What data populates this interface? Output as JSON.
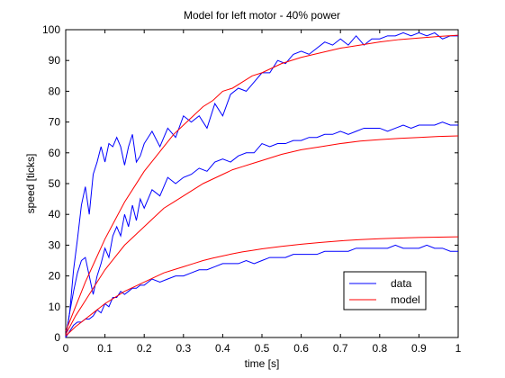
{
  "chart_data": {
    "type": "line",
    "title": "Model for left motor - 40% power",
    "xlabel": "time [s]",
    "ylabel": "speed [ticks]",
    "xlim": [
      0,
      1
    ],
    "ylim": [
      0,
      100
    ],
    "xticks": [
      "0",
      "0.1",
      "0.2",
      "0.3",
      "0.4",
      "0.5",
      "0.6",
      "0.7",
      "0.8",
      "0.9",
      "1"
    ],
    "yticks": [
      "0",
      "10",
      "20",
      "30",
      "40",
      "50",
      "60",
      "70",
      "80",
      "90",
      "100"
    ],
    "grid": false,
    "legend": {
      "placement": "bottom-right",
      "entries": [
        "data",
        "model"
      ]
    },
    "colors": {
      "data": "#0000ff",
      "model": "#ff0000"
    },
    "series": [
      {
        "name": "data",
        "group": "high",
        "x": [
          0,
          0.01,
          0.02,
          0.03,
          0.04,
          0.05,
          0.06,
          0.07,
          0.08,
          0.09,
          0.1,
          0.11,
          0.12,
          0.13,
          0.14,
          0.15,
          0.16,
          0.17,
          0.18,
          0.19,
          0.2,
          0.22,
          0.24,
          0.26,
          0.28,
          0.3,
          0.32,
          0.34,
          0.36,
          0.38,
          0.4,
          0.42,
          0.44,
          0.46,
          0.48,
          0.5,
          0.52,
          0.54,
          0.56,
          0.58,
          0.6,
          0.62,
          0.64,
          0.66,
          0.68,
          0.7,
          0.72,
          0.74,
          0.76,
          0.78,
          0.8,
          0.82,
          0.84,
          0.86,
          0.88,
          0.9,
          0.92,
          0.94,
          0.96,
          0.98,
          1.0
        ],
        "y": [
          0,
          8,
          22,
          32,
          43,
          49,
          40,
          53,
          57,
          62,
          57,
          63,
          62,
          65,
          62,
          56,
          62,
          66,
          57,
          59,
          63,
          67,
          62,
          68,
          65,
          72,
          70,
          72,
          68,
          76,
          72,
          79,
          81,
          80,
          83,
          86,
          86,
          90,
          89,
          92,
          93,
          92,
          94,
          96,
          95,
          97,
          95,
          98,
          95,
          97,
          97,
          98,
          98,
          99,
          98,
          99,
          98,
          99,
          97,
          98,
          98
        ]
      },
      {
        "name": "data",
        "group": "mid",
        "x": [
          0,
          0.01,
          0.02,
          0.03,
          0.04,
          0.05,
          0.06,
          0.07,
          0.08,
          0.09,
          0.1,
          0.11,
          0.12,
          0.13,
          0.14,
          0.15,
          0.16,
          0.17,
          0.18,
          0.19,
          0.2,
          0.22,
          0.24,
          0.26,
          0.28,
          0.3,
          0.32,
          0.34,
          0.36,
          0.38,
          0.4,
          0.42,
          0.44,
          0.46,
          0.48,
          0.5,
          0.52,
          0.54,
          0.56,
          0.58,
          0.6,
          0.62,
          0.64,
          0.66,
          0.68,
          0.7,
          0.72,
          0.74,
          0.76,
          0.78,
          0.8,
          0.82,
          0.84,
          0.86,
          0.88,
          0.9,
          0.92,
          0.94,
          0.96,
          0.98,
          1.0
        ],
        "y": [
          0,
          8,
          15,
          21,
          25,
          26,
          20,
          14,
          20,
          24,
          29,
          26,
          33,
          36,
          33,
          40,
          36,
          43,
          38,
          45,
          42,
          48,
          46,
          52,
          50,
          52,
          53,
          55,
          54,
          57,
          58,
          57,
          59,
          60,
          60,
          63,
          62,
          63,
          63,
          64,
          64,
          65,
          65,
          66,
          66,
          67,
          66,
          67,
          68,
          68,
          68,
          67,
          68,
          69,
          68,
          69,
          69,
          69,
          70,
          69,
          69
        ]
      },
      {
        "name": "data",
        "group": "low",
        "x": [
          0,
          0.01,
          0.02,
          0.03,
          0.04,
          0.05,
          0.06,
          0.07,
          0.08,
          0.09,
          0.1,
          0.11,
          0.12,
          0.13,
          0.14,
          0.15,
          0.16,
          0.17,
          0.18,
          0.19,
          0.2,
          0.22,
          0.24,
          0.26,
          0.28,
          0.3,
          0.32,
          0.34,
          0.36,
          0.38,
          0.4,
          0.42,
          0.44,
          0.46,
          0.48,
          0.5,
          0.52,
          0.54,
          0.56,
          0.58,
          0.6,
          0.62,
          0.64,
          0.66,
          0.68,
          0.7,
          0.72,
          0.74,
          0.76,
          0.78,
          0.8,
          0.82,
          0.84,
          0.86,
          0.88,
          0.9,
          0.92,
          0.94,
          0.96,
          0.98,
          1.0
        ],
        "y": [
          0,
          2,
          4,
          5,
          5,
          6,
          6,
          7,
          9,
          8,
          11,
          10,
          13,
          13,
          15,
          14,
          15,
          16,
          16,
          17,
          17,
          19,
          18,
          19,
          20,
          20,
          21,
          22,
          22,
          23,
          24,
          24,
          24,
          25,
          24,
          25,
          26,
          26,
          26,
          27,
          27,
          27,
          27,
          28,
          28,
          28,
          28,
          29,
          29,
          29,
          29,
          29,
          30,
          29,
          29,
          29,
          30,
          29,
          29,
          28,
          28
        ]
      },
      {
        "name": "model",
        "group": "high",
        "x": [
          0,
          0.025,
          0.05,
          0.075,
          0.1,
          0.125,
          0.15,
          0.175,
          0.2,
          0.225,
          0.25,
          0.275,
          0.3,
          0.325,
          0.35,
          0.375,
          0.4,
          0.425,
          0.45,
          0.475,
          0.5,
          0.55,
          0.6,
          0.65,
          0.7,
          0.75,
          0.8,
          0.85,
          0.9,
          0.95,
          1.0
        ],
        "y": [
          2,
          10,
          18,
          25,
          32,
          38,
          44,
          49,
          54,
          58,
          62,
          66,
          69,
          72,
          75,
          77,
          80,
          81,
          83,
          85,
          86,
          89,
          91,
          92.5,
          94,
          95,
          96,
          96.8,
          97.3,
          97.8,
          98.2
        ]
      },
      {
        "name": "model",
        "group": "mid",
        "x": [
          0,
          0.025,
          0.05,
          0.075,
          0.1,
          0.125,
          0.15,
          0.175,
          0.2,
          0.225,
          0.25,
          0.275,
          0.3,
          0.325,
          0.35,
          0.375,
          0.4,
          0.425,
          0.45,
          0.475,
          0.5,
          0.55,
          0.6,
          0.65,
          0.7,
          0.75,
          0.8,
          0.85,
          0.9,
          0.95,
          1.0
        ],
        "y": [
          1,
          7,
          12,
          17,
          22,
          26,
          30,
          33,
          36,
          39,
          42,
          44,
          46,
          48,
          50,
          51.5,
          53,
          54.5,
          55.5,
          56.5,
          57.5,
          59.5,
          61,
          62,
          63,
          63.8,
          64.3,
          64.7,
          65,
          65.3,
          65.5
        ]
      },
      {
        "name": "model",
        "group": "low",
        "x": [
          0,
          0.025,
          0.05,
          0.075,
          0.1,
          0.125,
          0.15,
          0.175,
          0.2,
          0.225,
          0.25,
          0.275,
          0.3,
          0.325,
          0.35,
          0.375,
          0.4,
          0.425,
          0.45,
          0.475,
          0.5,
          0.55,
          0.6,
          0.65,
          0.7,
          0.75,
          0.8,
          0.85,
          0.9,
          0.95,
          1.0
        ],
        "y": [
          0.5,
          3.5,
          6,
          8.5,
          11,
          13,
          15,
          16.5,
          18,
          19.5,
          21,
          22,
          23,
          24,
          25,
          25.8,
          26.5,
          27.2,
          27.8,
          28.3,
          28.8,
          29.6,
          30.3,
          30.9,
          31.4,
          31.8,
          32.1,
          32.3,
          32.5,
          32.6,
          32.7
        ]
      }
    ]
  }
}
